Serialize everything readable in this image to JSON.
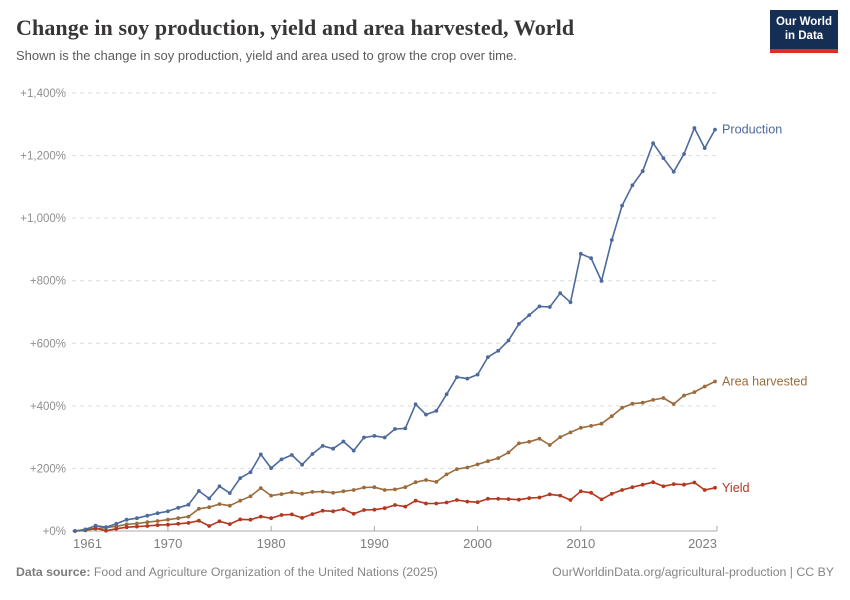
{
  "header": {
    "title": "Change in soy production, yield and area harvested, World",
    "subtitle": "Shown is the change in soy production, yield and area used to grow the crop over time.",
    "logo": {
      "line1": "Our World",
      "line2": "in Data",
      "bg_color": "#152e54",
      "stripe_color": "#d93025"
    }
  },
  "footer": {
    "source_label": "Data source:",
    "source_text": "Food and Agriculture Organization of the United Nations (2025)",
    "right_text": "OurWorldinData.org/agricultural-production | CC BY"
  },
  "chart_data": {
    "type": "line",
    "title": "Change in soy production, yield and area harvested, World",
    "xlabel": "",
    "ylabel": "",
    "ylim": [
      0,
      1400
    ],
    "grid": "horizontal-dashed",
    "legend": "end-of-line-labels",
    "y_ticks": [
      0,
      200,
      400,
      600,
      800,
      1000,
      1200,
      1400
    ],
    "y_tick_labels": [
      "+0%",
      "+200%",
      "+400%",
      "+600%",
      "+800%",
      "+1,000%",
      "+1,200%",
      "+1,400%"
    ],
    "x_ticks": [
      1961,
      1970,
      1980,
      1990,
      2000,
      2010,
      2023
    ],
    "x": [
      1961,
      1962,
      1963,
      1964,
      1965,
      1966,
      1967,
      1968,
      1969,
      1970,
      1971,
      1972,
      1973,
      1974,
      1975,
      1976,
      1977,
      1978,
      1979,
      1980,
      1981,
      1982,
      1983,
      1984,
      1985,
      1986,
      1987,
      1988,
      1989,
      1990,
      1991,
      1992,
      1993,
      1994,
      1995,
      1996,
      1997,
      1998,
      1999,
      2000,
      2001,
      2002,
      2003,
      2004,
      2005,
      2006,
      2007,
      2008,
      2009,
      2010,
      2011,
      2012,
      2013,
      2014,
      2015,
      2016,
      2017,
      2018,
      2019,
      2020,
      2021,
      2022,
      2023
    ],
    "series": [
      {
        "name": "Production",
        "color": "#4C6A9C",
        "unit": "% change since 1961",
        "values": [
          0,
          5,
          17,
          12,
          23,
          36,
          41,
          49,
          57,
          63,
          74,
          84,
          128,
          104,
          143,
          121,
          169,
          188,
          245,
          201,
          229,
          243,
          212,
          246,
          272,
          263,
          286,
          257,
          299,
          304,
          299,
          326,
          328,
          405,
          372,
          384,
          437,
          492,
          487,
          500,
          556,
          576,
          609,
          662,
          690,
          718,
          716,
          760,
          731,
          886,
          872,
          799,
          930,
          1040,
          1105,
          1150,
          1240,
          1192,
          1148,
          1205,
          1288,
          1224,
          1283
        ]
      },
      {
        "name": "Area harvested",
        "color": "#9B6C3D",
        "unit": "% change since 1961",
        "values": [
          0,
          3,
          7,
          11,
          15,
          21,
          24,
          28,
          32,
          36,
          41,
          46,
          71,
          76,
          86,
          81,
          97,
          111,
          137,
          113,
          118,
          124,
          119,
          125,
          126,
          122,
          127,
          131,
          139,
          140,
          131,
          133,
          140,
          156,
          163,
          157,
          181,
          198,
          203,
          213,
          223,
          233,
          251,
          280,
          285,
          295,
          275,
          300,
          315,
          330,
          336,
          343,
          367,
          394,
          407,
          410,
          419,
          425,
          406,
          433,
          444,
          462,
          478
        ]
      },
      {
        "name": "Yield",
        "color": "#B4371F",
        "unit": "% change since 1961",
        "values": [
          0,
          2,
          9,
          1,
          7,
          12,
          14,
          16,
          19,
          20,
          23,
          26,
          33,
          16,
          31,
          22,
          37,
          36,
          46,
          41,
          51,
          53,
          42,
          54,
          65,
          63,
          70,
          55,
          67,
          68,
          73,
          83,
          78,
          97,
          88,
          88,
          91,
          99,
          94,
          92,
          103,
          103,
          102,
          100,
          105,
          107,
          117,
          113,
          99,
          127,
          122,
          101,
          119,
          131,
          140,
          148,
          156,
          143,
          150,
          148,
          155,
          131,
          138
        ]
      }
    ]
  }
}
